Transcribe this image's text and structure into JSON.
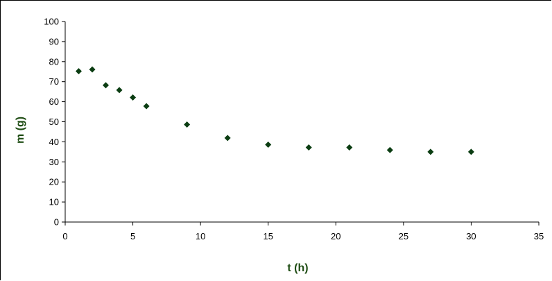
{
  "chart_data": {
    "type": "scatter",
    "title": "",
    "xlabel": "t (h)",
    "ylabel": "m (g)",
    "xlim": [
      0,
      35
    ],
    "ylim": [
      0,
      100
    ],
    "x_ticks": [
      0,
      5,
      10,
      15,
      20,
      25,
      30,
      35
    ],
    "y_ticks": [
      0,
      10,
      20,
      30,
      40,
      50,
      60,
      70,
      80,
      90,
      100
    ],
    "grid": false,
    "legend": "none",
    "marker": "diamond",
    "colors": {
      "marker": "#0b3d12",
      "axis_title": "#1f4d14",
      "axis": "#000000"
    },
    "points": [
      {
        "x": 1,
        "y": 75.2
      },
      {
        "x": 2,
        "y": 76.1
      },
      {
        "x": 3,
        "y": 68.2
      },
      {
        "x": 4,
        "y": 65.8
      },
      {
        "x": 5,
        "y": 62.1
      },
      {
        "x": 6,
        "y": 57.8
      },
      {
        "x": 9,
        "y": 48.6
      },
      {
        "x": 12,
        "y": 41.9
      },
      {
        "x": 15,
        "y": 38.6
      },
      {
        "x": 18,
        "y": 37.2
      },
      {
        "x": 21,
        "y": 37.2
      },
      {
        "x": 24,
        "y": 35.9
      },
      {
        "x": 27,
        "y": 35.0
      },
      {
        "x": 30,
        "y": 35.0
      }
    ]
  }
}
